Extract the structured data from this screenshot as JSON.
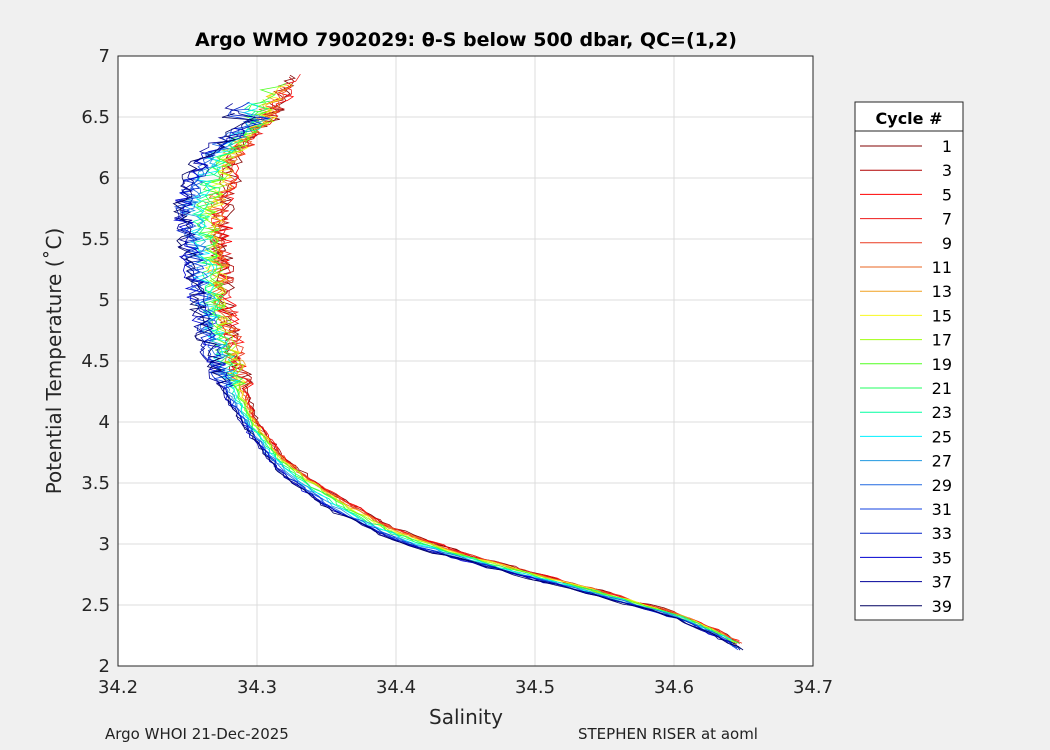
{
  "chart_data": {
    "type": "line",
    "title": "Argo WMO 7902029: θ-S below 500 dbar,  QC=(1,2)",
    "xlabel": "Salinity",
    "ylabel": "Potential Temperature (˚C)",
    "xlim": [
      34.2,
      34.7
    ],
    "ylim": [
      2,
      7
    ],
    "xticks": [
      "34.2",
      "34.3",
      "34.4",
      "34.5",
      "34.6",
      "34.7"
    ],
    "yticks": [
      "2",
      "2.5",
      "3",
      "3.5",
      "4",
      "4.5",
      "5",
      "5.5",
      "6",
      "6.5",
      "7"
    ],
    "grid": true,
    "legend": {
      "title": "Cycle #",
      "placement": "outside-right"
    },
    "reference_profiles": {
      "early": [
        [
          34.33,
          6.85
        ],
        [
          34.31,
          6.5
        ],
        [
          34.287,
          6.2
        ],
        [
          34.277,
          5.8
        ],
        [
          34.276,
          5.4
        ],
        [
          34.279,
          5.0
        ],
        [
          34.285,
          4.6
        ],
        [
          34.291,
          4.3
        ],
        [
          34.3,
          4.0
        ],
        [
          34.32,
          3.7
        ],
        [
          34.35,
          3.45
        ],
        [
          34.4,
          3.12
        ],
        [
          34.45,
          2.92
        ],
        [
          34.5,
          2.76
        ],
        [
          34.55,
          2.61
        ],
        [
          34.6,
          2.44
        ],
        [
          34.63,
          2.3
        ],
        [
          34.65,
          2.18
        ]
      ],
      "late": [
        [
          34.3,
          6.5
        ],
        [
          34.262,
          6.2
        ],
        [
          34.243,
          5.8
        ],
        [
          34.25,
          5.4
        ],
        [
          34.256,
          5.0
        ],
        [
          34.265,
          4.6
        ],
        [
          34.278,
          4.2
        ],
        [
          34.295,
          3.9
        ],
        [
          34.315,
          3.6
        ],
        [
          34.35,
          3.3
        ],
        [
          34.4,
          3.02
        ],
        [
          34.45,
          2.86
        ],
        [
          34.5,
          2.71
        ],
        [
          34.55,
          2.56
        ],
        [
          34.6,
          2.4
        ],
        [
          34.635,
          2.22
        ],
        [
          34.65,
          2.12
        ]
      ]
    },
    "series": [
      {
        "name": "1",
        "color": "#800000",
        "blend": 0.0
      },
      {
        "name": "3",
        "color": "#b00000",
        "blend": 0.05
      },
      {
        "name": "5",
        "color": "#ff0000",
        "blend": 0.05
      },
      {
        "name": "7",
        "color": "#ee1a1a",
        "blend": 0.1
      },
      {
        "name": "9",
        "color": "#ea3a20",
        "blend": 0.1
      },
      {
        "name": "11",
        "color": "#e86422",
        "blend": 0.15
      },
      {
        "name": "13",
        "color": "#f0a020",
        "blend": 0.2
      },
      {
        "name": "15",
        "color": "#f8f820",
        "blend": 0.25
      },
      {
        "name": "17",
        "color": "#a0ff10",
        "blend": 0.3
      },
      {
        "name": "19",
        "color": "#50ff20",
        "blend": 0.4
      },
      {
        "name": "21",
        "color": "#20ff60",
        "blend": 0.45
      },
      {
        "name": "23",
        "color": "#00ffa0",
        "blend": 0.55
      },
      {
        "name": "25",
        "color": "#00f0ff",
        "blend": 0.6
      },
      {
        "name": "27",
        "color": "#2098e0",
        "blend": 0.7
      },
      {
        "name": "29",
        "color": "#2068e0",
        "blend": 0.8
      },
      {
        "name": "31",
        "color": "#1040e0",
        "blend": 0.85
      },
      {
        "name": "33",
        "color": "#0020c8",
        "blend": 0.9
      },
      {
        "name": "35",
        "color": "#0000d0",
        "blend": 0.95
      },
      {
        "name": "37",
        "color": "#000098",
        "blend": 1.0
      },
      {
        "name": "39",
        "color": "#000060",
        "blend": 1.0
      }
    ]
  },
  "footer": {
    "left": "Argo WHOI 21-Dec-2025",
    "right": "STEPHEN RISER at aoml"
  }
}
